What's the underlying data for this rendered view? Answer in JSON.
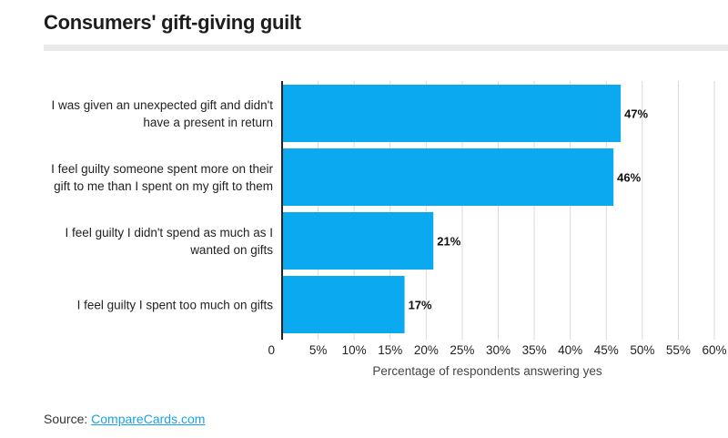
{
  "page": {
    "title": "Consumers' gift-giving guilt",
    "source_label": "Source: ",
    "source_link": "CompareCards.com"
  },
  "colors": {
    "bar": "#0ba9f0",
    "grid": "#d9d9d9",
    "axis": "#222222",
    "source_link": "#1aa3e8"
  },
  "chart_data": {
    "type": "bar",
    "orientation": "horizontal",
    "title": "Consumers' gift-giving guilt",
    "xlabel": "Percentage of respondents answering yes",
    "ylabel": "",
    "xlim": [
      0,
      60
    ],
    "grid": true,
    "categories": [
      [
        "I was given an unexpected gift and didn't",
        "have a present in return"
      ],
      [
        "I feel guilty someone spent more on their",
        "gift to me than I spent on my gift to them"
      ],
      [
        "I feel guilty I didn't spend as much as I",
        "wanted on gifts"
      ],
      [
        "I feel guilty I spent too much on gifts"
      ]
    ],
    "values": [
      47,
      46,
      21,
      17
    ],
    "value_labels": [
      "47%",
      "46%",
      "21%",
      "17%"
    ],
    "ticks": [
      0,
      5,
      10,
      15,
      20,
      25,
      30,
      35,
      40,
      45,
      50,
      55,
      60
    ],
    "tick_labels": [
      "0",
      "5%",
      "10%",
      "15%",
      "20%",
      "25%",
      "30%",
      "35%",
      "40%",
      "45%",
      "50%",
      "55%",
      "60%"
    ]
  }
}
